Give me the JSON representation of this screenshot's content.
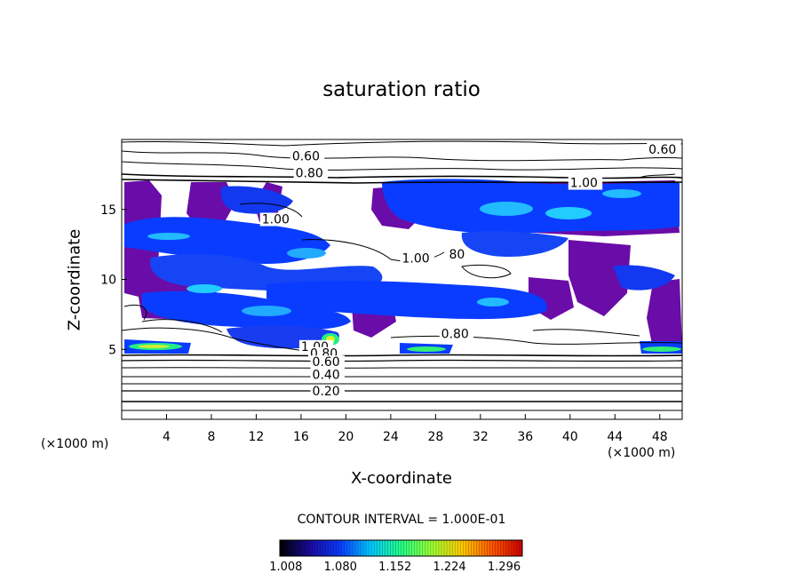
{
  "chart_data": {
    "type": "heatmap",
    "title": "saturation ratio",
    "xlabel": "X-coordinate",
    "ylabel": "Z-coordinate",
    "x_unit": "(×1000 m)",
    "z_unit": "(×1000 m)",
    "xlim": [
      0,
      50
    ],
    "ylim": [
      0,
      20
    ],
    "x_ticks": [
      4,
      8,
      12,
      16,
      20,
      24,
      28,
      32,
      36,
      40,
      44,
      48
    ],
    "y_ticks": [
      5,
      10,
      15
    ],
    "contour_interval_text": "CONTOUR INTERVAL = 1.000E-01",
    "contour_labels": [
      {
        "text": "0.60",
        "x": 15.2,
        "z": 18.5
      },
      {
        "text": "0.60",
        "x": 47.0,
        "z": 19.0
      },
      {
        "text": "0.80",
        "x": 15.5,
        "z": 17.3
      },
      {
        "text": "1.00",
        "x": 40.0,
        "z": 16.6
      },
      {
        "text": "1.00",
        "x": 12.5,
        "z": 14.0
      },
      {
        "text": "1.00",
        "x": 25.0,
        "z": 11.2
      },
      {
        "text": "80",
        "x": 29.2,
        "z": 11.5
      },
      {
        "text": "0.80",
        "x": 28.5,
        "z": 5.8
      },
      {
        "text": "1.00",
        "x": 16.0,
        "z": 4.9
      },
      {
        "text": "0.80",
        "x": 16.8,
        "z": 4.4
      },
      {
        "text": "0.60",
        "x": 17.0,
        "z": 3.8
      },
      {
        "text": "0.40",
        "x": 17.0,
        "z": 2.9
      },
      {
        "text": "0.20",
        "x": 17.0,
        "z": 1.7
      }
    ],
    "colorbar": {
      "ticks": [
        "1.008",
        "1.080",
        "1.152",
        "1.224",
        "1.296"
      ],
      "range": [
        1.0,
        1.32
      ],
      "colors": [
        "#000000",
        "#1a0aa0",
        "#0a3cff",
        "#00c8ff",
        "#22ff88",
        "#99ff33",
        "#ffcc00",
        "#ff5500",
        "#cc0000"
      ]
    },
    "supersaturated_regions": [
      {
        "x": [
          3,
          19
        ],
        "z": [
          12.5,
          14.5
        ],
        "level": 1.05
      },
      {
        "x": [
          8,
          22
        ],
        "z": [
          9,
          11.5
        ],
        "level": 1.04
      },
      {
        "x": [
          4,
          18
        ],
        "z": [
          7.2,
          8.8
        ],
        "level": 1.06
      },
      {
        "x": [
          9,
          22
        ],
        "z": [
          5.3,
          6.4
        ],
        "level": 1.05
      },
      {
        "x": [
          19,
          33
        ],
        "z": [
          7.5,
          9.2
        ],
        "level": 1.03
      },
      {
        "x": [
          29,
          50
        ],
        "z": [
          14,
          17
        ],
        "level": 1.06
      },
      {
        "x": [
          0.5,
          6
        ],
        "z": [
          4.8,
          5.6
        ],
        "level": 1.12
      },
      {
        "x": [
          17,
          20
        ],
        "z": [
          5.1,
          6.0
        ],
        "level": 1.2
      },
      {
        "x": [
          25,
          29.5
        ],
        "z": [
          4.8,
          5.3
        ],
        "level": 1.12
      },
      {
        "x": [
          44.5,
          50
        ],
        "z": [
          4.8,
          5.3
        ],
        "level": 1.12
      },
      {
        "x": [
          33,
          38
        ],
        "z": [
          14.8,
          16.2
        ],
        "level": 1.15
      }
    ]
  }
}
